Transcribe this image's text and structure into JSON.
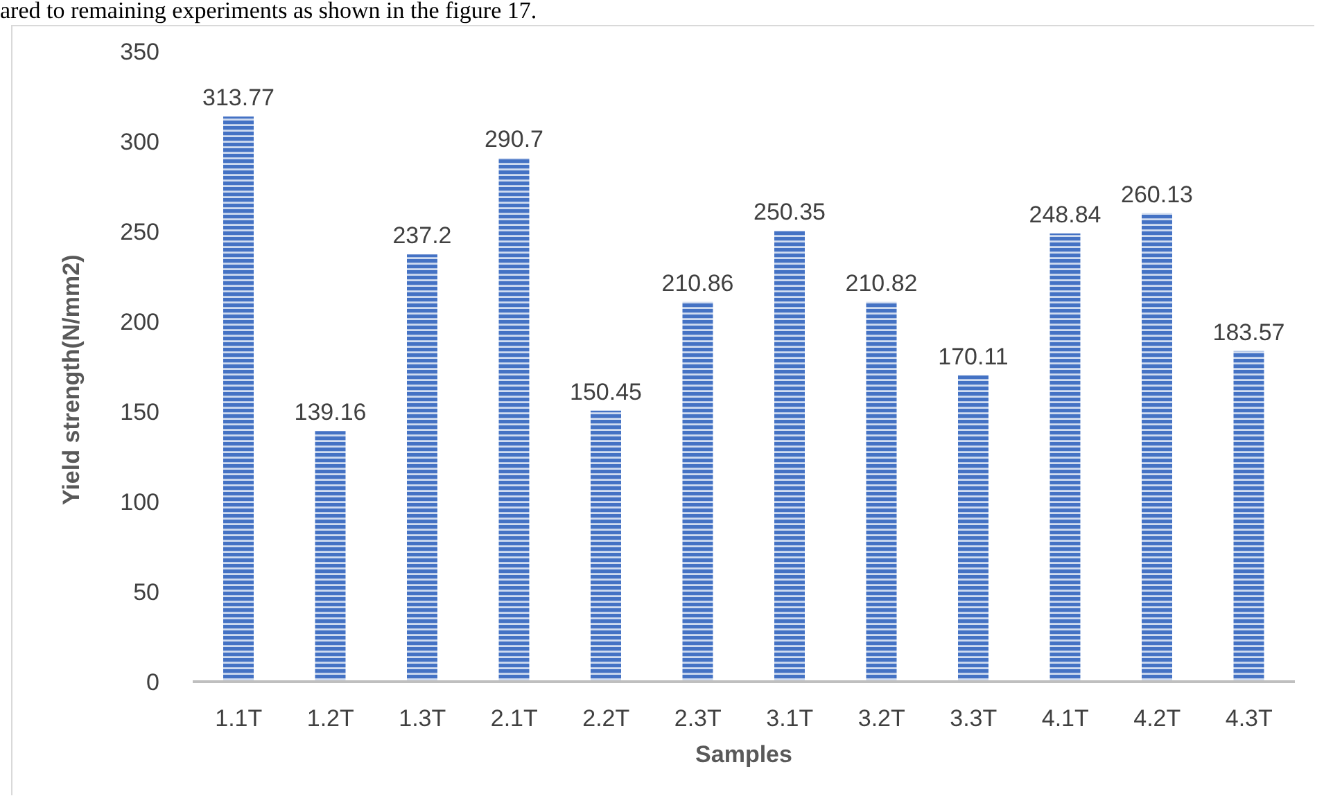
{
  "chart_data": {
    "type": "bar",
    "xlabel": "Samples",
    "ylabel": "Yield strength(N/mm2)",
    "annotations": [
      "ared to remaining experiments as shown in the figure 17."
    ],
    "categories": [
      "1.1T",
      "1.2T",
      "1.3T",
      "2.1T",
      "2.2T",
      "2.3T",
      "3.1T",
      "3.2T",
      "3.3T",
      "4.1T",
      "4.2T",
      "4.3T"
    ],
    "values": [
      313.77,
      139.16,
      237.2,
      290.7,
      150.45,
      210.86,
      250.35,
      210.82,
      170.11,
      248.84,
      260.13,
      183.57
    ],
    "color": "#4472c4",
    "ylim": [
      0,
      350
    ],
    "yticks": [
      0,
      50,
      100,
      150,
      200,
      250,
      300,
      350
    ],
    "data_labels": true,
    "grid": false,
    "legend": false
  }
}
